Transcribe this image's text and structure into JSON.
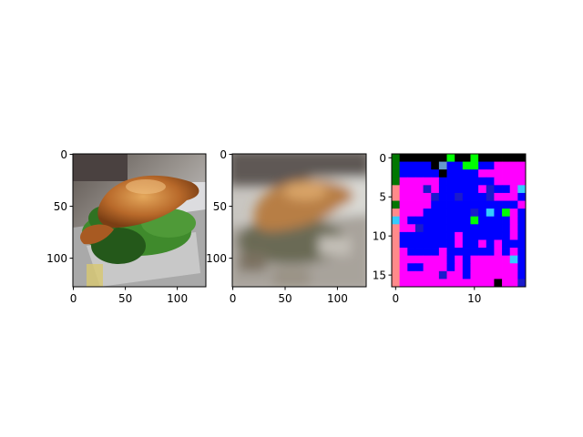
{
  "figure": {
    "background": "#ffffff"
  },
  "chart_data": [
    {
      "type": "image",
      "content": "sharp photo of a roasted whole chicken on a bed of green vegetables on a metal serving tray",
      "title": "",
      "xlabel": "",
      "ylabel": "",
      "xlim": [
        -0.5,
        127.5
      ],
      "ylim": [
        127.5,
        -0.5
      ],
      "xticks": [
        0,
        50,
        100
      ],
      "yticks": [
        0,
        50,
        100
      ],
      "colors": {
        "chicken": "#b8692a",
        "chicken_highlight": "#e0a357",
        "greens": "#3f8a2c",
        "greens_dark": "#24581a",
        "tray": "#a9a9a9",
        "background_top": "#6d6560",
        "background_light": "#d9d9dc"
      }
    },
    {
      "type": "image",
      "content": "blurred reconstruction of the same chicken photo",
      "title": "",
      "xlabel": "",
      "ylabel": "",
      "xlim": [
        -0.5,
        127.5
      ],
      "ylim": [
        127.5,
        -0.5
      ],
      "xticks": [
        0,
        50,
        100
      ],
      "yticks": [
        0,
        50,
        100
      ],
      "colors": {
        "chicken": "#b77e45",
        "greens": "#6a6a55",
        "tray": "#b5b3ad",
        "background_top": "#5f5955",
        "background_light": "#dadad6"
      }
    },
    {
      "type": "heatmap",
      "content": "17x17 grid of saturated blocks, mostly blue and magenta with a few black, green and cyan cells",
      "title": "",
      "xlabel": "",
      "ylabel": "",
      "xlim": [
        -0.5,
        16.5
      ],
      "ylim": [
        16.5,
        -0.5
      ],
      "xticks": [
        0,
        10
      ],
      "yticks": [
        0,
        5,
        10,
        15
      ],
      "rows": 17,
      "cols": 17,
      "palette": {
        "B": "#0000ff",
        "M": "#ff00ff",
        "P": "#bb00ee",
        "D": "#1a1acc",
        "K": "#000000",
        "G": "#00ff00",
        "g": "#007700",
        "C": "#33ccff",
        "c": "#6699cc",
        "S": "#ff8a8a",
        "T": "#66cc99"
      },
      "grid": [
        "gKKKKKKGKKGKKKKKK",
        "gBBBBKcBBGGBBMMMM",
        "gBBBBBKBBBBMMMMMM",
        "gMMMMMBBBBBBBMMMM",
        "SMMMDMBBBBBMDBBMC",
        "SMMMMDBBDBBBDMMMB",
        "gMMMMBBBBBBBBBBBM",
        "SMMMBBBBBBDBCBGMB",
        "CMBBBBBBBBGBBBBMB",
        "SMMDBBBBBBBBBBBMB",
        "SBBBBBBBMBBBBBBMB",
        "SBBBBBBBMBBMBMBBB",
        "SMBBBBMBBBBBBMBMB",
        "SMMMMMMBMBMMMMMCB",
        "SMBBMMMBMBMMMMMMB",
        "SMMMMMDMMBMMMMMMB",
        "SMMMMMMMMMMMMKMMD"
      ]
    }
  ]
}
